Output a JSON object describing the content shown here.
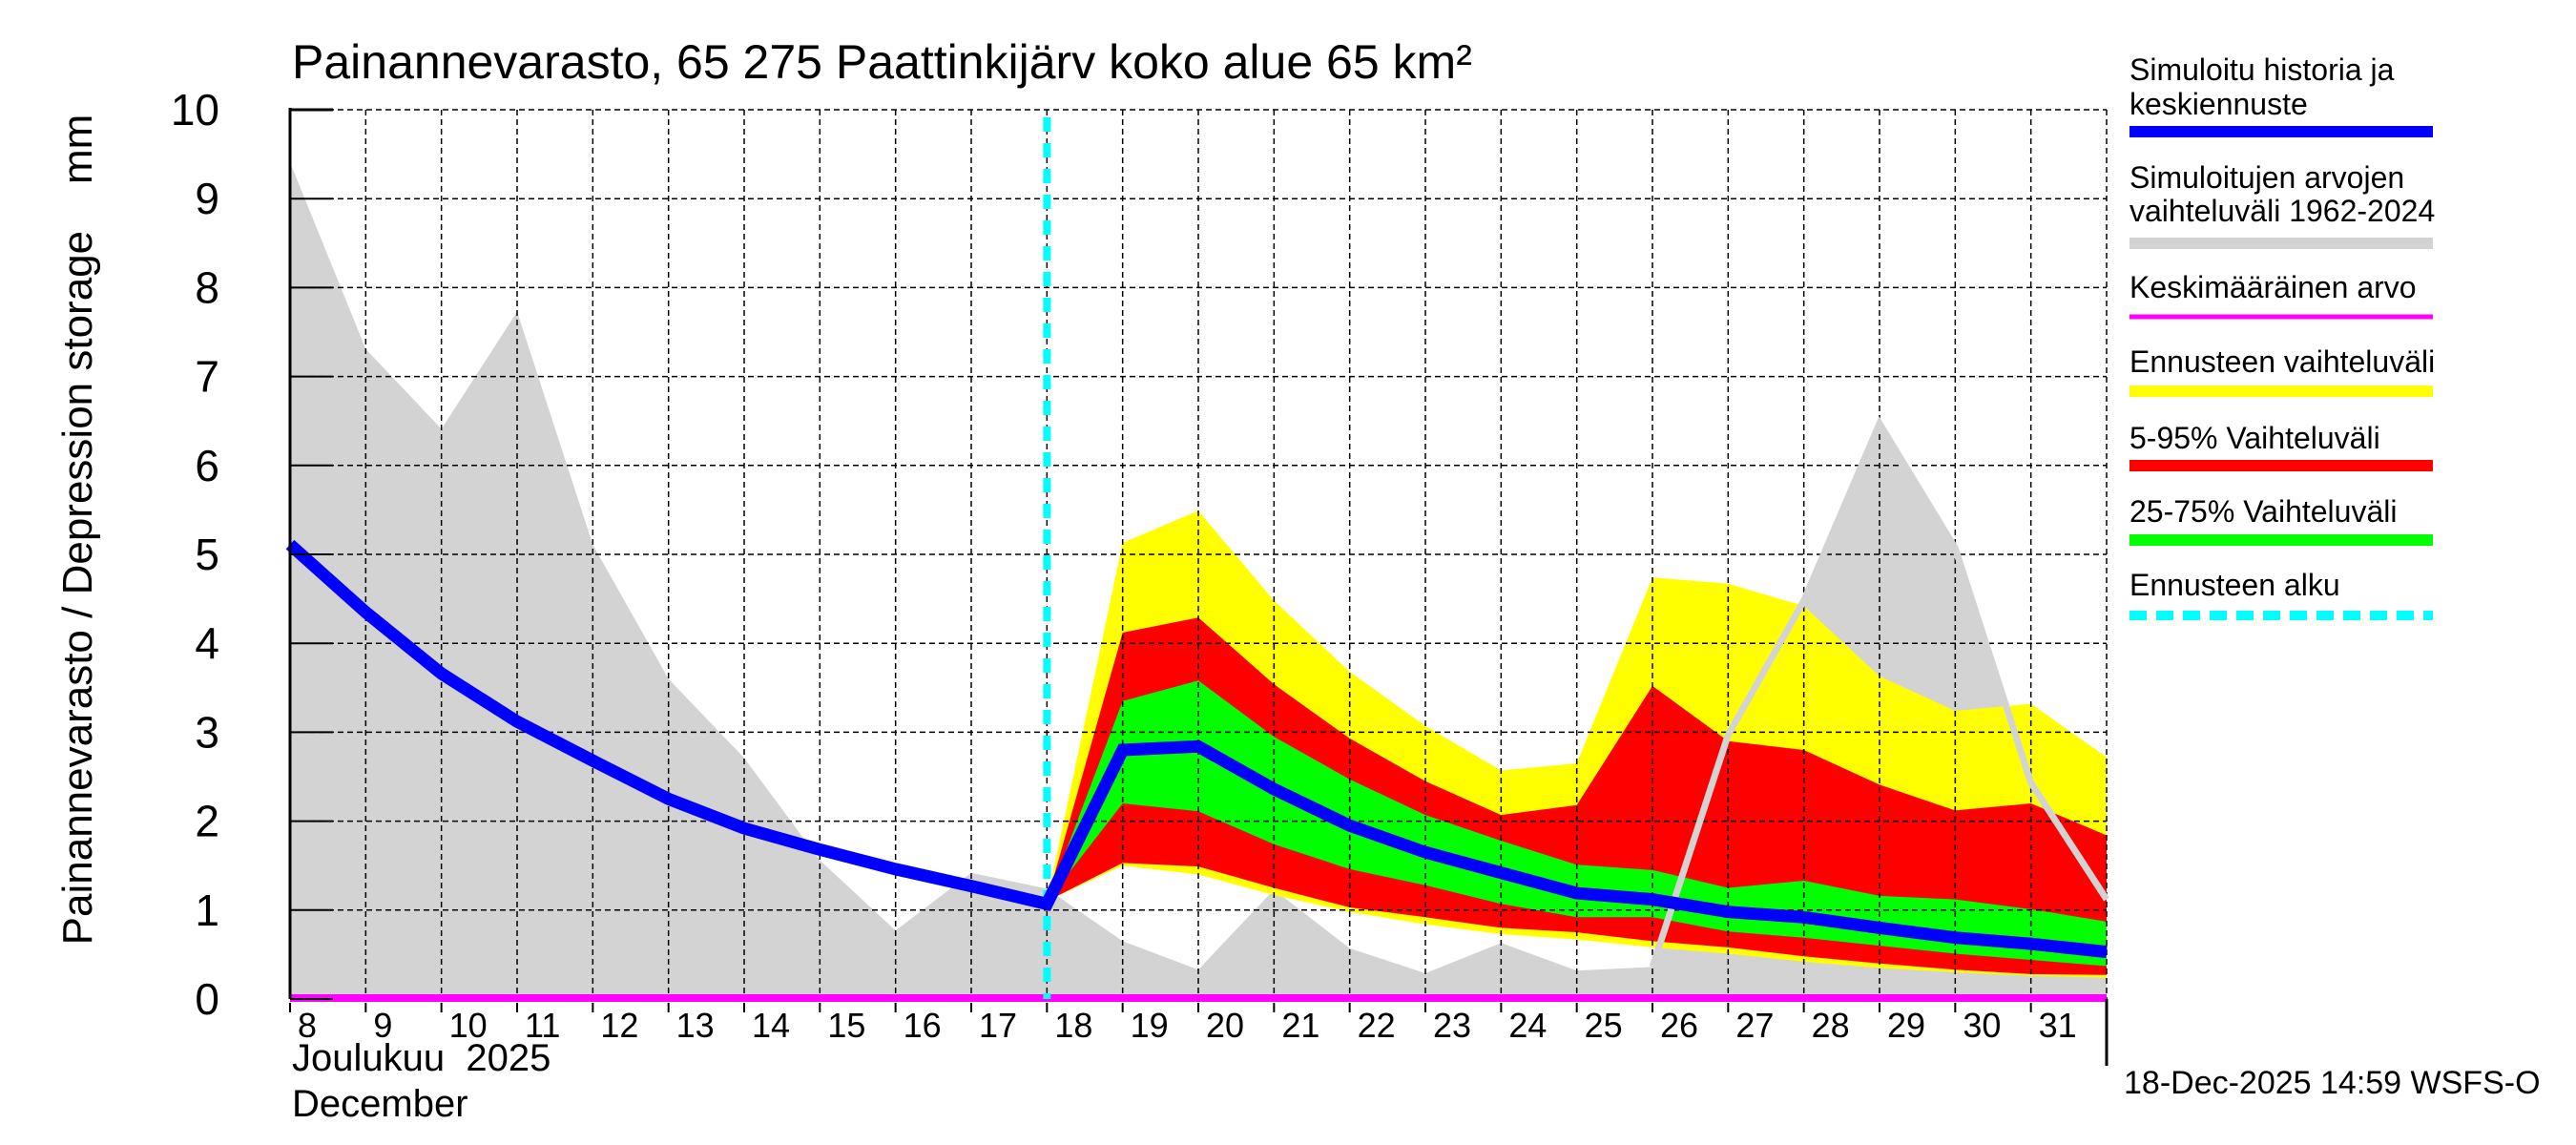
{
  "chart_data": {
    "type": "area",
    "title": "Painannevarasto, 65 275 Paattinkijärv koko alue 65 km²",
    "ylabel": "Painannevarasto / Depression storage    mm",
    "xlabel_line1": "Joulukuu  2025",
    "xlabel_line2": "December",
    "footer": "18-Dec-2025 14:59 WSFS-O",
    "ylim": [
      0,
      10
    ],
    "xlim": [
      8,
      32
    ],
    "yticks": [
      "0",
      "1",
      "2",
      "3",
      "4",
      "5",
      "6",
      "7",
      "8",
      "9",
      "10"
    ],
    "xticks": [
      "8",
      "9",
      "10",
      "11",
      "12",
      "13",
      "14",
      "15",
      "16",
      "17",
      "18",
      "19",
      "20",
      "21",
      "22",
      "23",
      "24",
      "25",
      "26",
      "27",
      "28",
      "29",
      "30",
      "31"
    ],
    "grid": true,
    "legend_position": "right",
    "forecast_start_day": 18,
    "mean_value": 0,
    "colors": {
      "median": "#0000ff",
      "history_range": "#d3d3d3",
      "mean": "#ff00ff",
      "forecast_range": "#ffff00",
      "p5_95": "#ff0000",
      "p25_75": "#00ff00",
      "forecast_start": "#00ffff"
    },
    "legend": [
      {
        "label": "Simuloitu historia ja\nkeskiennuste",
        "series": "median"
      },
      {
        "label": "Simuloitujen arvojen\nvaihteluväli 1962-2024",
        "series": "history_range"
      },
      {
        "label": "Keskimääräinen arvo",
        "series": "mean"
      },
      {
        "label": "Ennusteen vaihteluväli",
        "series": "forecast_range"
      },
      {
        "label": "5-95% Vaihteluväli",
        "series": "p5_95"
      },
      {
        "label": "25-75% Vaihteluväli",
        "series": "p25_75"
      },
      {
        "label": "Ennusteen alku",
        "series": "forecast_start"
      }
    ],
    "history_range_max": {
      "x": [
        8,
        9,
        10,
        11,
        12,
        13,
        14,
        15,
        16,
        17,
        18,
        19,
        20,
        21,
        22,
        23,
        24,
        25,
        26,
        27,
        28,
        29,
        30,
        31,
        32
      ],
      "values": [
        9.41,
        7.31,
        6.41,
        7.73,
        5.11,
        3.6,
        2.71,
        1.56,
        0.77,
        1.42,
        1.24,
        0.65,
        0.33,
        1.23,
        0.57,
        0.29,
        0.63,
        0.32,
        0.36,
        2.97,
        4.48,
        6.47,
        5.07,
        2.43,
        1.12
      ]
    },
    "history_range_min": {
      "x": [
        8,
        32
      ],
      "values": [
        0,
        0
      ]
    },
    "median": {
      "x": [
        8,
        9,
        10,
        11,
        12,
        13,
        14,
        15,
        16,
        17,
        18,
        19,
        20,
        21,
        22,
        23,
        24,
        25,
        26,
        27,
        28,
        29,
        30,
        31,
        32
      ],
      "values": [
        5.11,
        4.35,
        3.66,
        3.12,
        2.68,
        2.25,
        1.92,
        1.68,
        1.46,
        1.27,
        1.07,
        2.8,
        2.84,
        2.36,
        1.95,
        1.65,
        1.42,
        1.19,
        1.12,
        0.98,
        0.92,
        0.8,
        0.69,
        0.62,
        0.53
      ]
    },
    "forecast_bands": {
      "x": [
        18,
        19,
        20,
        21,
        22,
        23,
        24,
        25,
        26,
        27,
        28,
        29,
        30,
        31,
        32
      ],
      "forecast_max": [
        1.1,
        5.13,
        5.49,
        4.48,
        3.68,
        3.07,
        2.57,
        2.65,
        4.74,
        4.67,
        4.42,
        3.63,
        3.24,
        3.32,
        2.72
      ],
      "p95": [
        1.1,
        4.12,
        4.29,
        3.54,
        2.93,
        2.45,
        2.07,
        2.18,
        3.52,
        2.9,
        2.8,
        2.41,
        2.12,
        2.2,
        1.84
      ],
      "p75": [
        1.1,
        3.35,
        3.58,
        2.95,
        2.47,
        2.07,
        1.78,
        1.51,
        1.45,
        1.25,
        1.33,
        1.16,
        1.12,
        1.01,
        0.87
      ],
      "p25": [
        1.1,
        2.2,
        2.11,
        1.74,
        1.46,
        1.28,
        1.07,
        0.92,
        0.92,
        0.76,
        0.69,
        0.6,
        0.51,
        0.44,
        0.37
      ],
      "p5": [
        1.1,
        1.53,
        1.49,
        1.25,
        1.03,
        0.92,
        0.8,
        0.75,
        0.65,
        0.58,
        0.48,
        0.4,
        0.33,
        0.28,
        0.27
      ],
      "forecast_min": [
        1.1,
        1.5,
        1.4,
        1.17,
        0.98,
        0.84,
        0.73,
        0.67,
        0.58,
        0.51,
        0.42,
        0.35,
        0.3,
        0.26,
        0.24
      ]
    }
  }
}
